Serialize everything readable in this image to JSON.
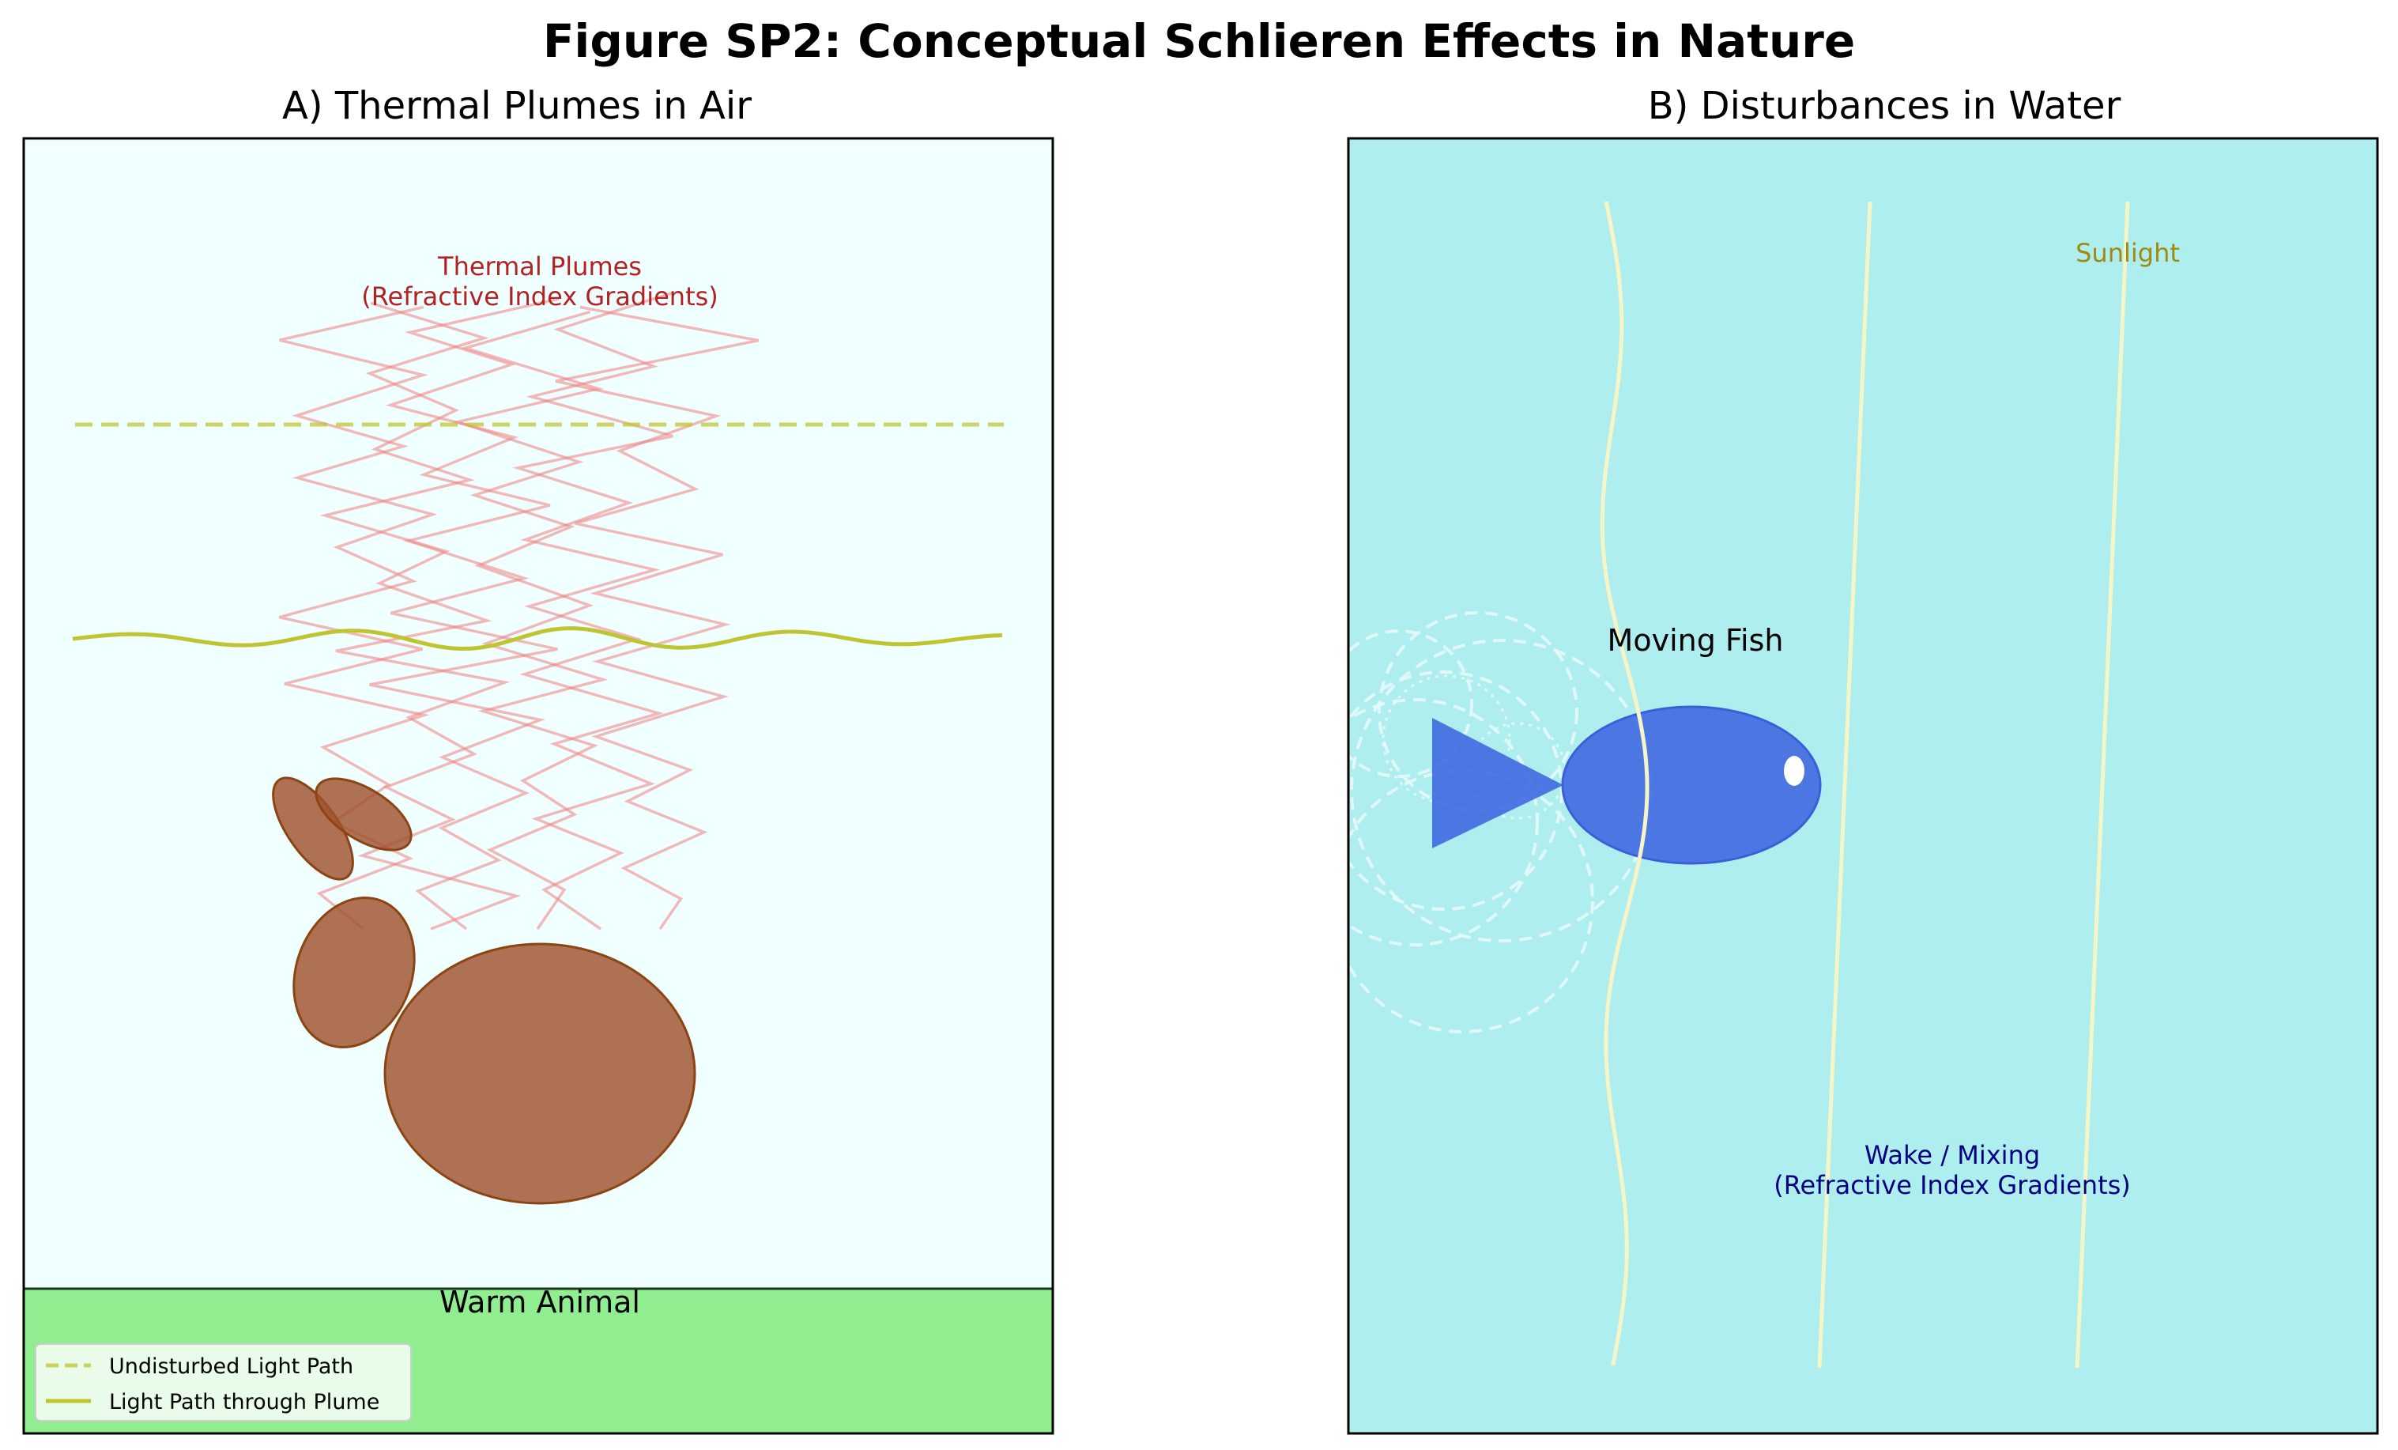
{
  "figure": {
    "title": "Figure SP2: Conceptual Schlieren Effects in Nature"
  },
  "panel_a": {
    "title": "A) Thermal Plumes in Air",
    "plume_label_line1": "Thermal Plumes",
    "plume_label_line2": "(Refractive Index Gradients)",
    "animal_label": "Warm Animal",
    "legend": {
      "undisturbed": "Undisturbed Light Path",
      "through_plume": "Light Path through Plume"
    },
    "colors": {
      "sky": "#f0ffff",
      "ground": "#90ee90",
      "plume": "#f08080",
      "plume_label": "#b22222",
      "animal": "#a0522d",
      "light": "#bfc530"
    }
  },
  "panel_b": {
    "title": "B) Disturbances in Water",
    "fish_label": "Moving Fish",
    "sunlight_label": "Sunlight",
    "wake_label_line1": "Wake / Mixing",
    "wake_label_line2": "(Refractive Index Gradients)",
    "colors": {
      "water": "#afeeee",
      "fish": "#4169e1",
      "sunlight_ray": "#f5f5c8",
      "sunlight_label": "#a08a10",
      "wake_label": "#000080",
      "wake": "#e6f8f8"
    }
  }
}
